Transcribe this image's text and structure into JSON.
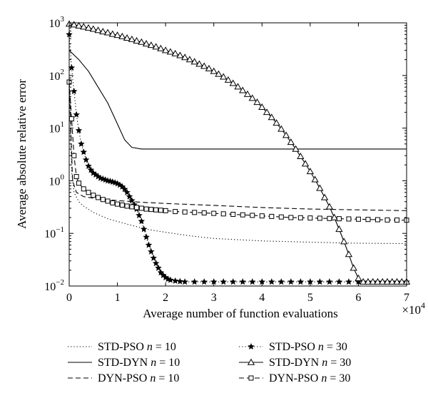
{
  "chart_data": {
    "type": "line",
    "xlabel": "Average number of function evaluations",
    "ylabel": "Average absolute relative error",
    "x_multiplier": "×10",
    "x_multiplier_exp": "4",
    "xlim": [
      0,
      70000
    ],
    "ylim": [
      0.01,
      1000
    ],
    "y_scale": "log",
    "x_ticks": [
      0,
      10000,
      20000,
      30000,
      40000,
      50000,
      60000,
      70000
    ],
    "x_tick_labels": [
      "0",
      "1",
      "2",
      "3",
      "4",
      "5",
      "6",
      "7"
    ],
    "y_ticks": [
      0.01,
      0.1,
      1,
      10,
      100,
      1000
    ],
    "y_tick_base": "10",
    "y_tick_exps": [
      "−2",
      "−1",
      "0",
      "1",
      "2",
      "3"
    ],
    "grid": false,
    "legend_position": "below",
    "series": [
      {
        "name": "STD-PSO",
        "n_label": "n",
        "n_value": "= 10",
        "style": "dotted",
        "marker": "none",
        "points": [
          [
            0,
            80
          ],
          [
            500,
            1.5
          ],
          [
            1000,
            0.6
          ],
          [
            2000,
            0.4
          ],
          [
            3000,
            0.33
          ],
          [
            5000,
            0.25
          ],
          [
            8000,
            0.19
          ],
          [
            12000,
            0.15
          ],
          [
            16000,
            0.12
          ],
          [
            20000,
            0.105
          ],
          [
            25000,
            0.09
          ],
          [
            30000,
            0.08
          ],
          [
            40000,
            0.072
          ],
          [
            50000,
            0.068
          ],
          [
            60000,
            0.065
          ],
          [
            70000,
            0.064
          ]
        ]
      },
      {
        "name": "STD-DYN",
        "n_label": "n",
        "n_value": "= 10",
        "style": "solid",
        "marker": "none",
        "points": [
          [
            0,
            300
          ],
          [
            2000,
            200
          ],
          [
            4000,
            120
          ],
          [
            6000,
            60
          ],
          [
            8000,
            30
          ],
          [
            10000,
            12
          ],
          [
            11500,
            6
          ],
          [
            13000,
            4.3
          ],
          [
            15000,
            4
          ],
          [
            18000,
            4
          ],
          [
            30000,
            4
          ],
          [
            50000,
            4
          ],
          [
            70000,
            4
          ]
        ]
      },
      {
        "name": "DYN-PSO",
        "n_label": "n",
        "n_value": "= 10",
        "style": "dashed",
        "marker": "none",
        "points": [
          [
            0,
            80
          ],
          [
            700,
            1.0
          ],
          [
            1500,
            0.6
          ],
          [
            3000,
            0.5
          ],
          [
            6000,
            0.45
          ],
          [
            10000,
            0.42
          ],
          [
            15000,
            0.39
          ],
          [
            20000,
            0.37
          ],
          [
            30000,
            0.34
          ],
          [
            40000,
            0.31
          ],
          [
            50000,
            0.29
          ],
          [
            60000,
            0.28
          ],
          [
            70000,
            0.27
          ]
        ]
      },
      {
        "name": "STD-PSO",
        "n_label": "n",
        "n_value": "= 30",
        "style": "dotted",
        "marker": "star",
        "points": [
          [
            0,
            600
          ],
          [
            500,
            140
          ],
          [
            1000,
            50
          ],
          [
            1500,
            18
          ],
          [
            2000,
            9
          ],
          [
            2500,
            5
          ],
          [
            3000,
            3.5
          ],
          [
            3500,
            2.5
          ],
          [
            4000,
            1.9
          ],
          [
            4500,
            1.6
          ],
          [
            5000,
            1.4
          ],
          [
            5500,
            1.3
          ],
          [
            6000,
            1.2
          ],
          [
            6500,
            1.12
          ],
          [
            7000,
            1.08
          ],
          [
            7500,
            1.04
          ],
          [
            8000,
            1.0
          ],
          [
            8500,
            0.98
          ],
          [
            9000,
            0.95
          ],
          [
            9500,
            0.92
          ],
          [
            10000,
            0.88
          ],
          [
            10500,
            0.83
          ],
          [
            11000,
            0.77
          ],
          [
            11500,
            0.69
          ],
          [
            12000,
            0.6
          ],
          [
            12500,
            0.5
          ],
          [
            13000,
            0.42
          ],
          [
            13500,
            0.35
          ],
          [
            14000,
            0.29
          ],
          [
            14500,
            0.22
          ],
          [
            15000,
            0.17
          ],
          [
            15500,
            0.12
          ],
          [
            16000,
            0.085
          ],
          [
            16500,
            0.06
          ],
          [
            17000,
            0.045
          ],
          [
            17500,
            0.034
          ],
          [
            18000,
            0.027
          ],
          [
            18500,
            0.022
          ],
          [
            19000,
            0.018
          ],
          [
            19500,
            0.016
          ],
          [
            20000,
            0.0145
          ],
          [
            20500,
            0.0135
          ],
          [
            21000,
            0.013
          ],
          [
            22000,
            0.0125
          ],
          [
            23000,
            0.0122
          ],
          [
            24000,
            0.012
          ],
          [
            26000,
            0.012
          ],
          [
            28000,
            0.012
          ],
          [
            30000,
            0.012
          ],
          [
            32000,
            0.012
          ],
          [
            34000,
            0.012
          ],
          [
            36000,
            0.012
          ],
          [
            38000,
            0.012
          ],
          [
            40000,
            0.012
          ],
          [
            42000,
            0.012
          ],
          [
            44000,
            0.012
          ],
          [
            46000,
            0.012
          ],
          [
            48000,
            0.012
          ],
          [
            50000,
            0.012
          ],
          [
            52000,
            0.012
          ],
          [
            54000,
            0.012
          ],
          [
            56000,
            0.012
          ],
          [
            58000,
            0.012
          ],
          [
            60000,
            0.012
          ],
          [
            62000,
            0.012
          ],
          [
            64000,
            0.012
          ],
          [
            66000,
            0.012
          ],
          [
            68000,
            0.012
          ],
          [
            70000,
            0.012
          ]
        ]
      },
      {
        "name": "STD-DYN",
        "n_label": "n",
        "n_value": "= 30",
        "style": "solid",
        "marker": "triangle",
        "points": [
          [
            0,
            950
          ],
          [
            1000,
            920
          ],
          [
            2000,
            880
          ],
          [
            3000,
            840
          ],
          [
            4000,
            800
          ],
          [
            5000,
            760
          ],
          [
            6000,
            720
          ],
          [
            7000,
            680
          ],
          [
            8000,
            650
          ],
          [
            9000,
            610
          ],
          [
            10000,
            580
          ],
          [
            11000,
            550
          ],
          [
            12000,
            515
          ],
          [
            13000,
            485
          ],
          [
            14000,
            455
          ],
          [
            15000,
            430
          ],
          [
            16000,
            400
          ],
          [
            17000,
            375
          ],
          [
            18000,
            350
          ],
          [
            19000,
            325
          ],
          [
            20000,
            300
          ],
          [
            21000,
            280
          ],
          [
            22000,
            260
          ],
          [
            23000,
            240
          ],
          [
            24000,
            220
          ],
          [
            25000,
            200
          ],
          [
            26000,
            182
          ],
          [
            27000,
            165
          ],
          [
            28000,
            150
          ],
          [
            29000,
            135
          ],
          [
            30000,
            120
          ],
          [
            31000,
            106
          ],
          [
            32000,
            94
          ],
          [
            33000,
            82
          ],
          [
            34000,
            71
          ],
          [
            35000,
            61
          ],
          [
            36000,
            52
          ],
          [
            37000,
            44
          ],
          [
            38000,
            37
          ],
          [
            39000,
            31
          ],
          [
            40000,
            25
          ],
          [
            41000,
            20
          ],
          [
            42000,
            16
          ],
          [
            43000,
            12.5
          ],
          [
            44000,
            9.6
          ],
          [
            45000,
            7.3
          ],
          [
            46000,
            5.4
          ],
          [
            47000,
            4.0
          ],
          [
            48000,
            2.9
          ],
          [
            49000,
            2.1
          ],
          [
            50000,
            1.5
          ],
          [
            51000,
            1.05
          ],
          [
            52000,
            0.72
          ],
          [
            53000,
            0.48
          ],
          [
            54000,
            0.32
          ],
          [
            55000,
            0.2
          ],
          [
            56000,
            0.12
          ],
          [
            57000,
            0.07
          ],
          [
            58000,
            0.04
          ],
          [
            59000,
            0.022
          ],
          [
            60000,
            0.014
          ],
          [
            61000,
            0.012
          ],
          [
            62000,
            0.012
          ],
          [
            63000,
            0.012
          ],
          [
            64000,
            0.012
          ],
          [
            65000,
            0.012
          ],
          [
            66000,
            0.012
          ],
          [
            67000,
            0.012
          ],
          [
            68000,
            0.012
          ],
          [
            69000,
            0.012
          ],
          [
            70000,
            0.012
          ]
        ]
      },
      {
        "name": "DYN-PSO",
        "n_label": "n",
        "n_value": "= 30",
        "style": "dashed",
        "marker": "square",
        "points": [
          [
            0,
            75
          ],
          [
            500,
            15
          ],
          [
            1000,
            3
          ],
          [
            1500,
            1.2
          ],
          [
            2000,
            0.9
          ],
          [
            3000,
            0.7
          ],
          [
            4000,
            0.6
          ],
          [
            5000,
            0.53
          ],
          [
            6000,
            0.48
          ],
          [
            7000,
            0.44
          ],
          [
            8000,
            0.41
          ],
          [
            9000,
            0.38
          ],
          [
            10000,
            0.36
          ],
          [
            11000,
            0.345
          ],
          [
            12000,
            0.33
          ],
          [
            13000,
            0.32
          ],
          [
            14000,
            0.31
          ],
          [
            15000,
            0.3
          ],
          [
            16000,
            0.29
          ],
          [
            17000,
            0.285
          ],
          [
            18000,
            0.28
          ],
          [
            19000,
            0.275
          ],
          [
            20000,
            0.27
          ],
          [
            22000,
            0.26
          ],
          [
            24000,
            0.255
          ],
          [
            26000,
            0.25
          ],
          [
            28000,
            0.245
          ],
          [
            30000,
            0.24
          ],
          [
            32000,
            0.235
          ],
          [
            34000,
            0.23
          ],
          [
            36000,
            0.225
          ],
          [
            38000,
            0.22
          ],
          [
            40000,
            0.215
          ],
          [
            42000,
            0.21
          ],
          [
            44000,
            0.205
          ],
          [
            46000,
            0.2
          ],
          [
            48000,
            0.198
          ],
          [
            50000,
            0.196
          ],
          [
            52000,
            0.194
          ],
          [
            54000,
            0.192
          ],
          [
            56000,
            0.19
          ],
          [
            58000,
            0.188
          ],
          [
            60000,
            0.186
          ],
          [
            62000,
            0.184
          ],
          [
            64000,
            0.182
          ],
          [
            66000,
            0.18
          ],
          [
            68000,
            0.179
          ],
          [
            70000,
            0.178
          ]
        ]
      }
    ]
  }
}
